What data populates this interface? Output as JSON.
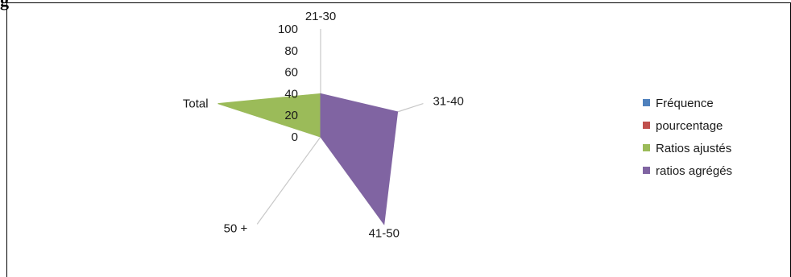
{
  "header": {
    "cut_text": "g"
  },
  "chart_data": {
    "type": "radar",
    "title": "",
    "categories": [
      "21-30",
      "31-40",
      "41-50",
      "50 +",
      "Total"
    ],
    "radial_ticks": [
      "0",
      "20",
      "40",
      "60",
      "80",
      "100"
    ],
    "rlim": [
      0,
      100
    ],
    "series": [
      {
        "name": "Fréquence",
        "color": "#4f81bd",
        "values": [
          0,
          0,
          0,
          0,
          0
        ]
      },
      {
        "name": "pourcentage",
        "color": "#c0504d",
        "values": [
          0,
          0,
          0,
          0,
          0
        ]
      },
      {
        "name": "Ratios ajustés",
        "color": "#9bbb59",
        "values": [
          40,
          0,
          0,
          0,
          100
        ]
      },
      {
        "name": "ratios agrégés",
        "color": "#8064a2",
        "values": [
          40,
          75,
          100,
          0,
          0
        ]
      }
    ],
    "legend": "right",
    "grid": false
  }
}
